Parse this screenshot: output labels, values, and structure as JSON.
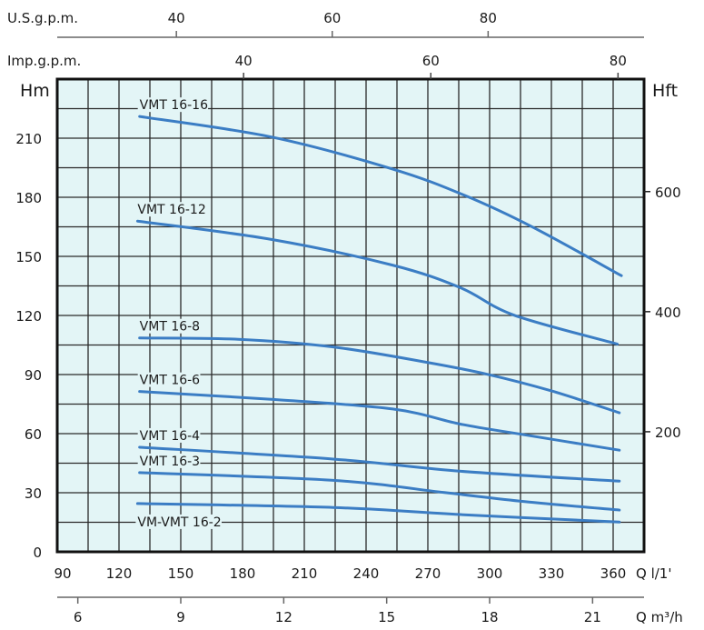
{
  "chart_data": {
    "type": "line",
    "title": "",
    "xlabel": "Q l/1'",
    "xlabel_m3h": "Q m³/h",
    "ylabel": "Hm",
    "ylabel_right": "Hft",
    "top_axis_us": {
      "label": "U.S.g.p.m.",
      "ticks": [
        40,
        60,
        80
      ],
      "l_per_unit": 3.785
    },
    "top_axis_imp": {
      "label": "Imp.g.p.m.",
      "ticks": [
        40,
        60,
        80
      ],
      "l_per_unit": 4.546
    },
    "bottom_axis_m3h": {
      "ticks": [
        6,
        9,
        12,
        15,
        18,
        21
      ],
      "l_per_unit": 16.667
    },
    "xlim": [
      90,
      375
    ],
    "ylim": [
      0,
      240
    ],
    "xticks": [
      90,
      120,
      150,
      180,
      210,
      240,
      270,
      300,
      330,
      360
    ],
    "yticks": [
      0,
      30,
      60,
      90,
      120,
      150,
      180,
      210
    ],
    "yticks_right_ft": [
      200,
      400,
      600
    ],
    "grid": true,
    "grid_x_step": 15,
    "grid_y_step": 15,
    "series": [
      {
        "name": "VMT 16-16",
        "x": [
          130,
          194,
          253,
          288,
          321,
          364
        ],
        "y": [
          221,
          210.6,
          194.3,
          180.9,
          164.8,
          140.2
        ]
      },
      {
        "name": "VMT 16-12",
        "x": [
          129,
          194,
          253,
          286,
          312,
          362
        ],
        "y": [
          167.9,
          158.6,
          145.5,
          134,
          120.1,
          105.5
        ]
      },
      {
        "name": "VMT 16-8",
        "x": [
          130,
          178,
          224,
          269,
          299,
          330,
          363
        ],
        "y": [
          108.6,
          107.9,
          104,
          96.3,
          90.1,
          81.7,
          70.6
        ]
      },
      {
        "name": "VMT 16-6",
        "x": [
          130,
          194,
          253,
          286,
          317,
          363
        ],
        "y": [
          81.4,
          77.4,
          72.5,
          64.8,
          59.4,
          51.6
        ]
      },
      {
        "name": "VMT 16-4",
        "x": [
          130,
          224,
          286,
          363
        ],
        "y": [
          53.1,
          47.1,
          40.9,
          35.9
        ]
      },
      {
        "name": "VMT 16-3",
        "x": [
          130,
          224,
          278,
          317,
          363
        ],
        "y": [
          40.2,
          36.3,
          30.1,
          25.5,
          21.2
        ]
      },
      {
        "name": "VM-VMT 16-2",
        "x": [
          129,
          224,
          286,
          363
        ],
        "y": [
          24.5,
          22.5,
          18.9,
          15.1
        ]
      }
    ],
    "colors": {
      "curve": "#3b7dc4",
      "plot_bg": "#e3f5f6",
      "grid": "#2a2a2a"
    }
  }
}
